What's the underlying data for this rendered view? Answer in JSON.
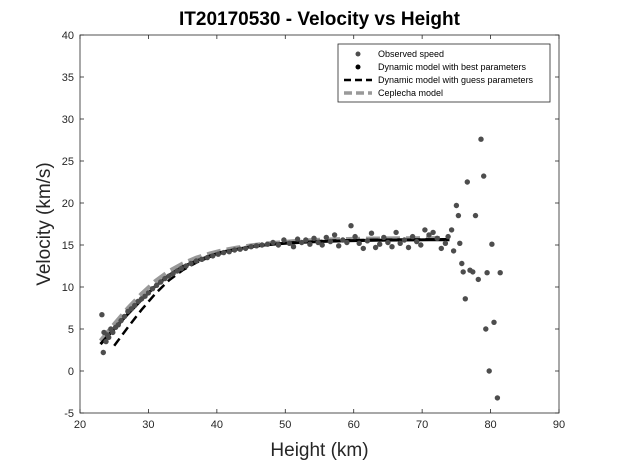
{
  "chart_data": {
    "type": "scatter",
    "title": "IT20170530 - Velocity vs Height",
    "xlabel": "Height (km)",
    "ylabel": "Velocity (km/s)",
    "xlim": [
      20,
      90
    ],
    "ylim": [
      -5,
      40
    ],
    "xticks": [
      20,
      30,
      40,
      50,
      60,
      70,
      80,
      90
    ],
    "yticks": [
      -5,
      0,
      5,
      10,
      15,
      20,
      25,
      30,
      35,
      40
    ],
    "grid": false,
    "legend_position": "top-right",
    "colors": {
      "observed": "#4d4d4d",
      "best": "#000000",
      "guess": "#000000",
      "ceplecha": "#999999",
      "axes": "#262626"
    },
    "series": [
      {
        "name": "Observed speed",
        "type": "scatter",
        "x": [
          23.2,
          23.4,
          23.5,
          23.8,
          24.0,
          24.2,
          24.5,
          24.8,
          25.2,
          25.6,
          26.0,
          26.5,
          27.0,
          27.5,
          28.0,
          28.5,
          29.0,
          29.5,
          30.0,
          30.6,
          31.2,
          31.8,
          32.4,
          33.0,
          33.6,
          34.2,
          34.8,
          35.5,
          36.2,
          37.0,
          37.8,
          38.6,
          39.4,
          40.2,
          41.0,
          41.8,
          42.6,
          43.4,
          44.2,
          45.0,
          45.8,
          46.6,
          47.4,
          48.2,
          49.0,
          49.8,
          50.6,
          51.2,
          51.8,
          52.4,
          53.0,
          53.6,
          54.2,
          54.8,
          55.4,
          56.0,
          56.6,
          57.2,
          57.8,
          58.4,
          59.0,
          59.6,
          60.2,
          60.8,
          61.4,
          62.0,
          62.6,
          63.2,
          63.8,
          64.4,
          65.0,
          65.6,
          66.2,
          66.8,
          67.4,
          68.0,
          68.6,
          69.2,
          69.8,
          70.4,
          71.0,
          71.6,
          72.2,
          72.8,
          73.4,
          73.8,
          74.3,
          74.6,
          75.0,
          75.3,
          75.5,
          75.8,
          76.0,
          76.3,
          76.6,
          77.0,
          77.4,
          77.8,
          78.2,
          78.6,
          79.0,
          79.3,
          79.5,
          79.8,
          80.2,
          80.5,
          81.0,
          81.4
        ],
        "y": [
          6.7,
          2.2,
          4.6,
          3.5,
          4.3,
          4.0,
          5.0,
          4.6,
          5.2,
          5.5,
          6.0,
          6.5,
          7.1,
          7.4,
          7.8,
          8.3,
          8.6,
          8.9,
          9.3,
          9.8,
          10.2,
          10.6,
          11.0,
          11.3,
          11.6,
          11.9,
          12.2,
          12.5,
          12.8,
          13.1,
          13.3,
          13.5,
          13.7,
          13.9,
          14.1,
          14.2,
          14.4,
          14.5,
          14.6,
          14.8,
          14.9,
          15.0,
          15.1,
          15.3,
          15.0,
          15.6,
          15.2,
          14.8,
          15.7,
          15.3,
          15.6,
          15.1,
          15.8,
          15.3,
          15.0,
          15.9,
          15.4,
          16.2,
          14.9,
          15.6,
          15.3,
          17.3,
          16.0,
          15.2,
          14.6,
          15.5,
          16.4,
          14.7,
          15.1,
          15.9,
          15.3,
          14.8,
          16.5,
          15.2,
          15.6,
          14.7,
          16.0,
          15.4,
          15.0,
          16.8,
          16.2,
          16.5,
          15.8,
          14.6,
          15.2,
          16.0,
          16.8,
          14.3,
          19.7,
          18.5,
          15.2,
          12.8,
          11.8,
          8.6,
          22.5,
          12.0,
          11.8,
          18.5,
          10.9,
          27.6,
          23.2,
          5.0,
          11.7,
          0.0,
          15.1,
          5.8,
          -3.2,
          11.7
        ]
      },
      {
        "name": "Dynamic model with best parameters",
        "type": "line",
        "x": [
          23,
          25,
          27,
          29,
          31,
          33,
          35,
          37,
          39,
          41,
          43,
          45,
          47,
          49,
          51,
          53,
          55,
          57,
          59,
          61,
          63,
          65,
          67,
          69,
          71,
          73,
          74
        ],
        "y": [
          3.2,
          5.0,
          6.8,
          8.5,
          10.1,
          11.4,
          12.4,
          13.1,
          13.7,
          14.2,
          14.5,
          14.8,
          15.0,
          15.15,
          15.25,
          15.35,
          15.42,
          15.47,
          15.51,
          15.54,
          15.56,
          15.58,
          15.6,
          15.61,
          15.62,
          15.63,
          15.63
        ]
      },
      {
        "name": "Dynamic model with guess parameters",
        "type": "line",
        "x": [
          25,
          27,
          29,
          31,
          33,
          35,
          37,
          39,
          41,
          43,
          45,
          47,
          49,
          51,
          53,
          55,
          57,
          59,
          61,
          63,
          65,
          67,
          69,
          71,
          73,
          74
        ],
        "y": [
          3.0,
          5.2,
          7.3,
          9.2,
          10.8,
          12.0,
          12.9,
          13.6,
          14.1,
          14.5,
          14.8,
          15.0,
          15.15,
          15.3,
          15.4,
          15.48,
          15.53,
          15.57,
          15.6,
          15.62,
          15.64,
          15.65,
          15.66,
          15.67,
          15.68,
          15.68
        ]
      },
      {
        "name": "Ceplecha model",
        "type": "line",
        "x": [
          23,
          25,
          27,
          29,
          31,
          33,
          35,
          37,
          39,
          41,
          43,
          45,
          47,
          49,
          51,
          53,
          55,
          57,
          59,
          61,
          63,
          65,
          67,
          69,
          71,
          73,
          74
        ],
        "y": [
          3.6,
          5.6,
          7.5,
          9.2,
          10.7,
          11.9,
          12.8,
          13.5,
          14.0,
          14.4,
          14.7,
          14.95,
          15.15,
          15.3,
          15.45,
          15.55,
          15.62,
          15.68,
          15.72,
          15.75,
          15.77,
          15.79,
          15.8,
          15.81,
          15.82,
          15.82,
          15.82
        ]
      }
    ]
  }
}
